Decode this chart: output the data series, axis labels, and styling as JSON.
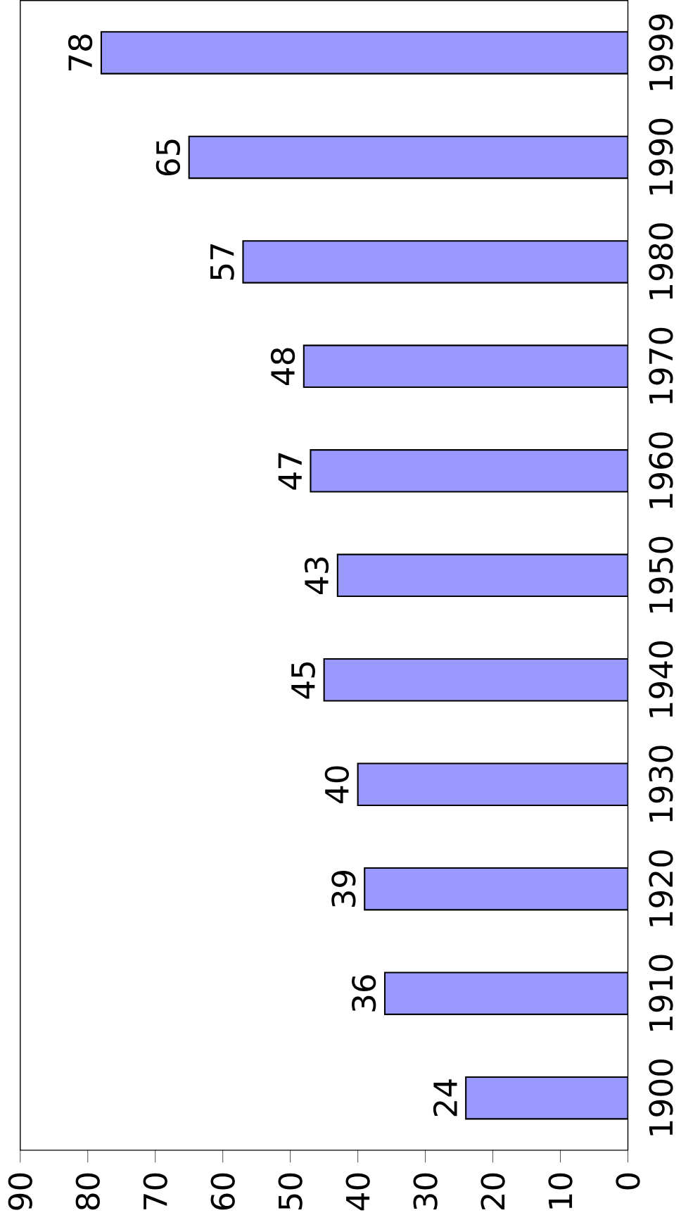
{
  "chart_data": {
    "type": "bar",
    "orientation": "horizontal",
    "categories": [
      "1999",
      "1990",
      "1980",
      "1970",
      "1960",
      "1950",
      "1940",
      "1930",
      "1920",
      "1910",
      "1900"
    ],
    "values": [
      78,
      65,
      57,
      48,
      47,
      43,
      45,
      40,
      39,
      36,
      24
    ],
    "color": "#9999ff",
    "xlim": [
      90,
      0
    ],
    "xticks": [
      90,
      80,
      70,
      60,
      50,
      40,
      30,
      20,
      10,
      0
    ],
    "data_labels": true
  }
}
